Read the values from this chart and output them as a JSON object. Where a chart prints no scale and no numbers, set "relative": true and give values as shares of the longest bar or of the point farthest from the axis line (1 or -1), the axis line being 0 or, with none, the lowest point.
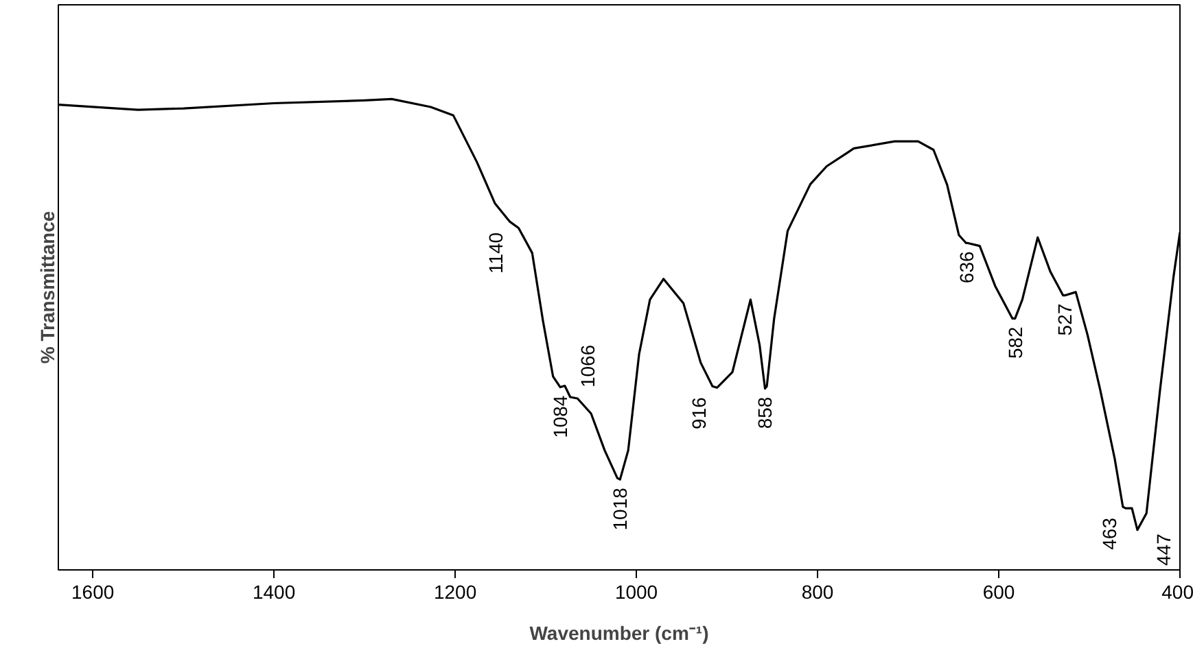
{
  "chart_data": {
    "type": "line",
    "relative": true,
    "xlabel": "Wavenumber (cm⁻¹)",
    "ylabel": "% Transmittance",
    "xlim": [
      1638,
      400
    ],
    "xticks": [
      1600,
      1400,
      1200,
      1000,
      800,
      600,
      400
    ],
    "tick_labels": "x",
    "grid": false,
    "marker": "none",
    "line_style": "solid",
    "series": [
      {
        "color": "#000000",
        "x": [
          1638,
          1550,
          1500,
          1400,
          1300,
          1270,
          1227,
          1202,
          1176,
          1156,
          1140,
          1130,
          1115,
          1103,
          1092,
          1084,
          1079,
          1073,
          1065,
          1050,
          1035,
          1021,
          1018,
          1009,
          997,
          985,
          970,
          948,
          929,
          916,
          911,
          894,
          874,
          864,
          858,
          856,
          848,
          833,
          808,
          790,
          767,
          760,
          715,
          689,
          672,
          657,
          644,
          636,
          634,
          621,
          604,
          585,
          582,
          574,
          557,
          543,
          529,
          527,
          515,
          502,
          488,
          472,
          463,
          460,
          453,
          447,
          437,
          422,
          407,
          400
        ],
        "values": [
          0.988,
          0.977,
          0.98,
          0.991,
          0.997,
          1.0,
          0.983,
          0.965,
          0.866,
          0.778,
          0.74,
          0.726,
          0.673,
          0.528,
          0.411,
          0.388,
          0.391,
          0.367,
          0.364,
          0.332,
          0.254,
          0.195,
          0.192,
          0.254,
          0.458,
          0.574,
          0.618,
          0.566,
          0.44,
          0.39,
          0.387,
          0.42,
          0.574,
          0.478,
          0.385,
          0.39,
          0.533,
          0.72,
          0.819,
          0.857,
          0.886,
          0.895,
          0.91,
          0.91,
          0.892,
          0.818,
          0.711,
          0.694,
          0.694,
          0.688,
          0.603,
          0.534,
          0.534,
          0.574,
          0.706,
          0.633,
          0.583,
          0.583,
          0.59,
          0.499,
          0.382,
          0.236,
          0.134,
          0.131,
          0.131,
          0.085,
          0.12,
          0.382,
          0.624,
          0.717
        ]
      }
    ],
    "annotations": [
      {
        "text": "1140",
        "x": 1140,
        "y": 0.74
      },
      {
        "text": "1084",
        "x": 1084,
        "y": 0.388
      },
      {
        "text": "1066",
        "x": 1066,
        "y": 0.364
      },
      {
        "text": "1018",
        "x": 1018,
        "y": 0.192
      },
      {
        "text": "916",
        "x": 916,
        "y": 0.39
      },
      {
        "text": "858",
        "x": 858,
        "y": 0.385
      },
      {
        "text": "636",
        "x": 636,
        "y": 0.694
      },
      {
        "text": "582",
        "x": 582,
        "y": 0.534
      },
      {
        "text": "527",
        "x": 527,
        "y": 0.583
      },
      {
        "text": "463",
        "x": 463,
        "y": 0.134
      },
      {
        "text": "447",
        "x": 447,
        "y": 0.085
      }
    ]
  }
}
